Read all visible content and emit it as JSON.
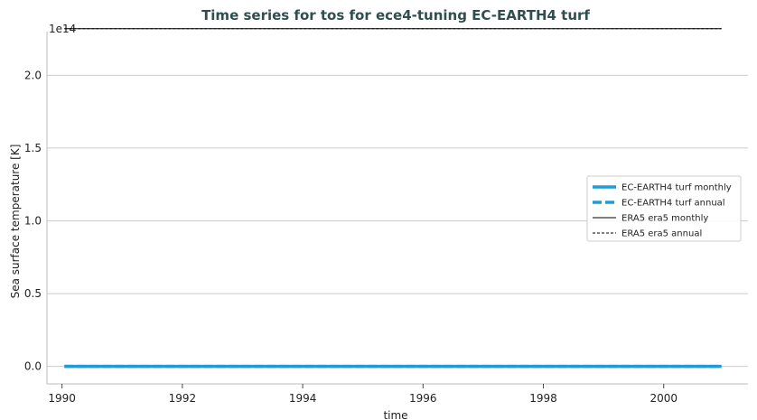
{
  "chart_data": {
    "type": "line",
    "title": "Time series for tos for ece4-tuning EC-EARTH4 turf",
    "xlabel": "time",
    "ylabel": "Sea surface temperature [K]",
    "y_offset_label": "1e14",
    "xlim": [
      1989.75,
      2001.4
    ],
    "ylim": [
      -0.12,
      2.3
    ],
    "x_ticks": [
      1990,
      1992,
      1994,
      1996,
      1998,
      2000
    ],
    "x_tick_labels": [
      "1990",
      "1992",
      "1994",
      "1996",
      "1998",
      "2000"
    ],
    "y_ticks": [
      0.0,
      0.5,
      1.0,
      1.5,
      2.0
    ],
    "y_tick_labels": [
      "0.0",
      "0.5",
      "1.0",
      "1.5",
      "2.0"
    ],
    "grid": "horizontal",
    "legend_position": "center-right",
    "series": [
      {
        "name": "EC-EARTH4 turf monthly",
        "color": "#1f9bd8",
        "style": "solid-thick",
        "x": [
          1990.04,
          2000.96
        ],
        "y": [
          0.0,
          0.0
        ]
      },
      {
        "name": "EC-EARTH4 turf annual",
        "color": "#1f9bd8",
        "style": "dashed-thick",
        "x": [
          1990.04,
          2000.96
        ],
        "y": [
          0.0,
          0.0
        ]
      },
      {
        "name": "ERA5 era5 monthly",
        "color": "#000000",
        "style": "solid-thin",
        "x": [
          1990.04,
          2000.96
        ],
        "y": [
          2.32,
          2.32
        ]
      },
      {
        "name": "ERA5 era5 annual",
        "color": "#000000",
        "style": "dashed-thin",
        "x": [
          1990.04,
          2000.96
        ],
        "y": [
          2.32,
          2.32
        ]
      }
    ]
  }
}
